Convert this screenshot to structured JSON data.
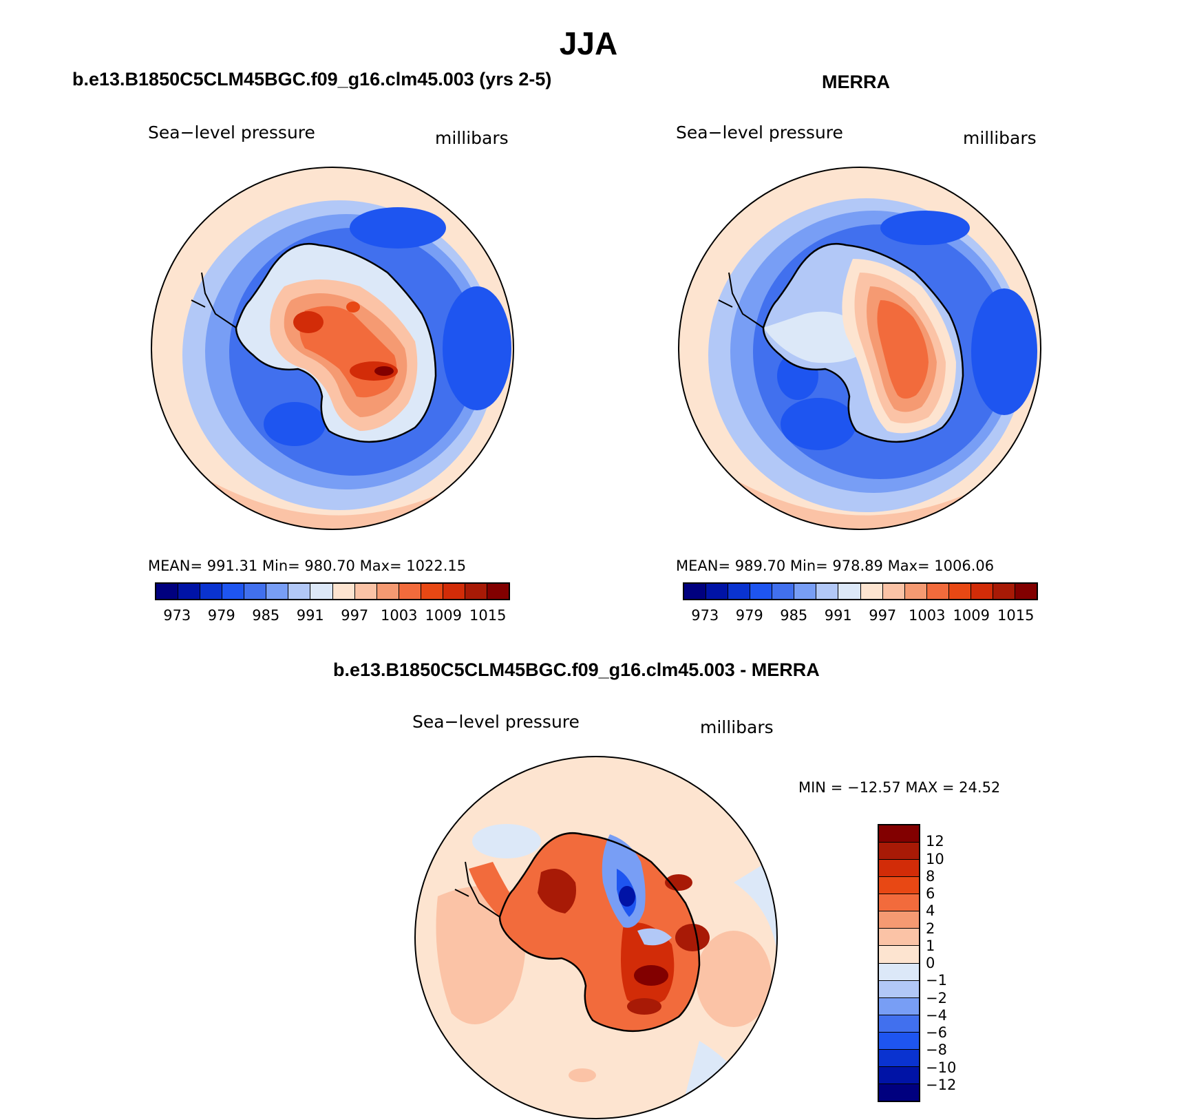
{
  "title": "JJA",
  "panels": {
    "model": {
      "title": "b.e13.B1850C5CLM45BGC.f09_g16.clm45.003 (yrs 2-5)",
      "variable": "Sea−level pressure",
      "units": "millibars",
      "stats": "MEAN=  991.31    Min=  980.70    Max=  1022.15"
    },
    "obs": {
      "title": "MERRA",
      "variable": "Sea−level pressure",
      "units": "millibars",
      "stats": "MEAN=  989.70    Min=  978.89    Max=  1006.06"
    },
    "diff": {
      "title": "b.e13.B1850C5CLM45BGC.f09_g16.clm45.003 - MERRA",
      "variable": "Sea−level pressure",
      "units": "millibars",
      "stats": "MIN  =  −12.57  MAX  =    24.52"
    }
  },
  "abs_colorbar": {
    "colors": [
      "#00007f",
      "#0013a6",
      "#0a33d0",
      "#1e55f0",
      "#4170ee",
      "#789ef5",
      "#b2c8f7",
      "#dce8f8",
      "#fde4d0",
      "#fbc3a6",
      "#f59a72",
      "#f26b3c",
      "#e84814",
      "#d22c08",
      "#a81a06",
      "#820000"
    ],
    "ticks": [
      "973",
      "979",
      "985",
      "991",
      "997",
      "1003",
      "1009",
      "1015"
    ]
  },
  "diff_colorbar": {
    "colors_top_to_bottom": [
      "#820000",
      "#a81a06",
      "#d22c08",
      "#e84814",
      "#f26b3c",
      "#f59a72",
      "#fbc3a6",
      "#fde4d0",
      "#dce8f8",
      "#b2c8f7",
      "#789ef5",
      "#4170ee",
      "#1e55f0",
      "#0a33d0",
      "#0013a6",
      "#00007f"
    ],
    "ticks": [
      "12",
      "10",
      "8",
      "6",
      "4",
      "2",
      "1",
      "0",
      "−1",
      "−2",
      "−4",
      "−6",
      "−8",
      "−10",
      "−12"
    ]
  }
}
